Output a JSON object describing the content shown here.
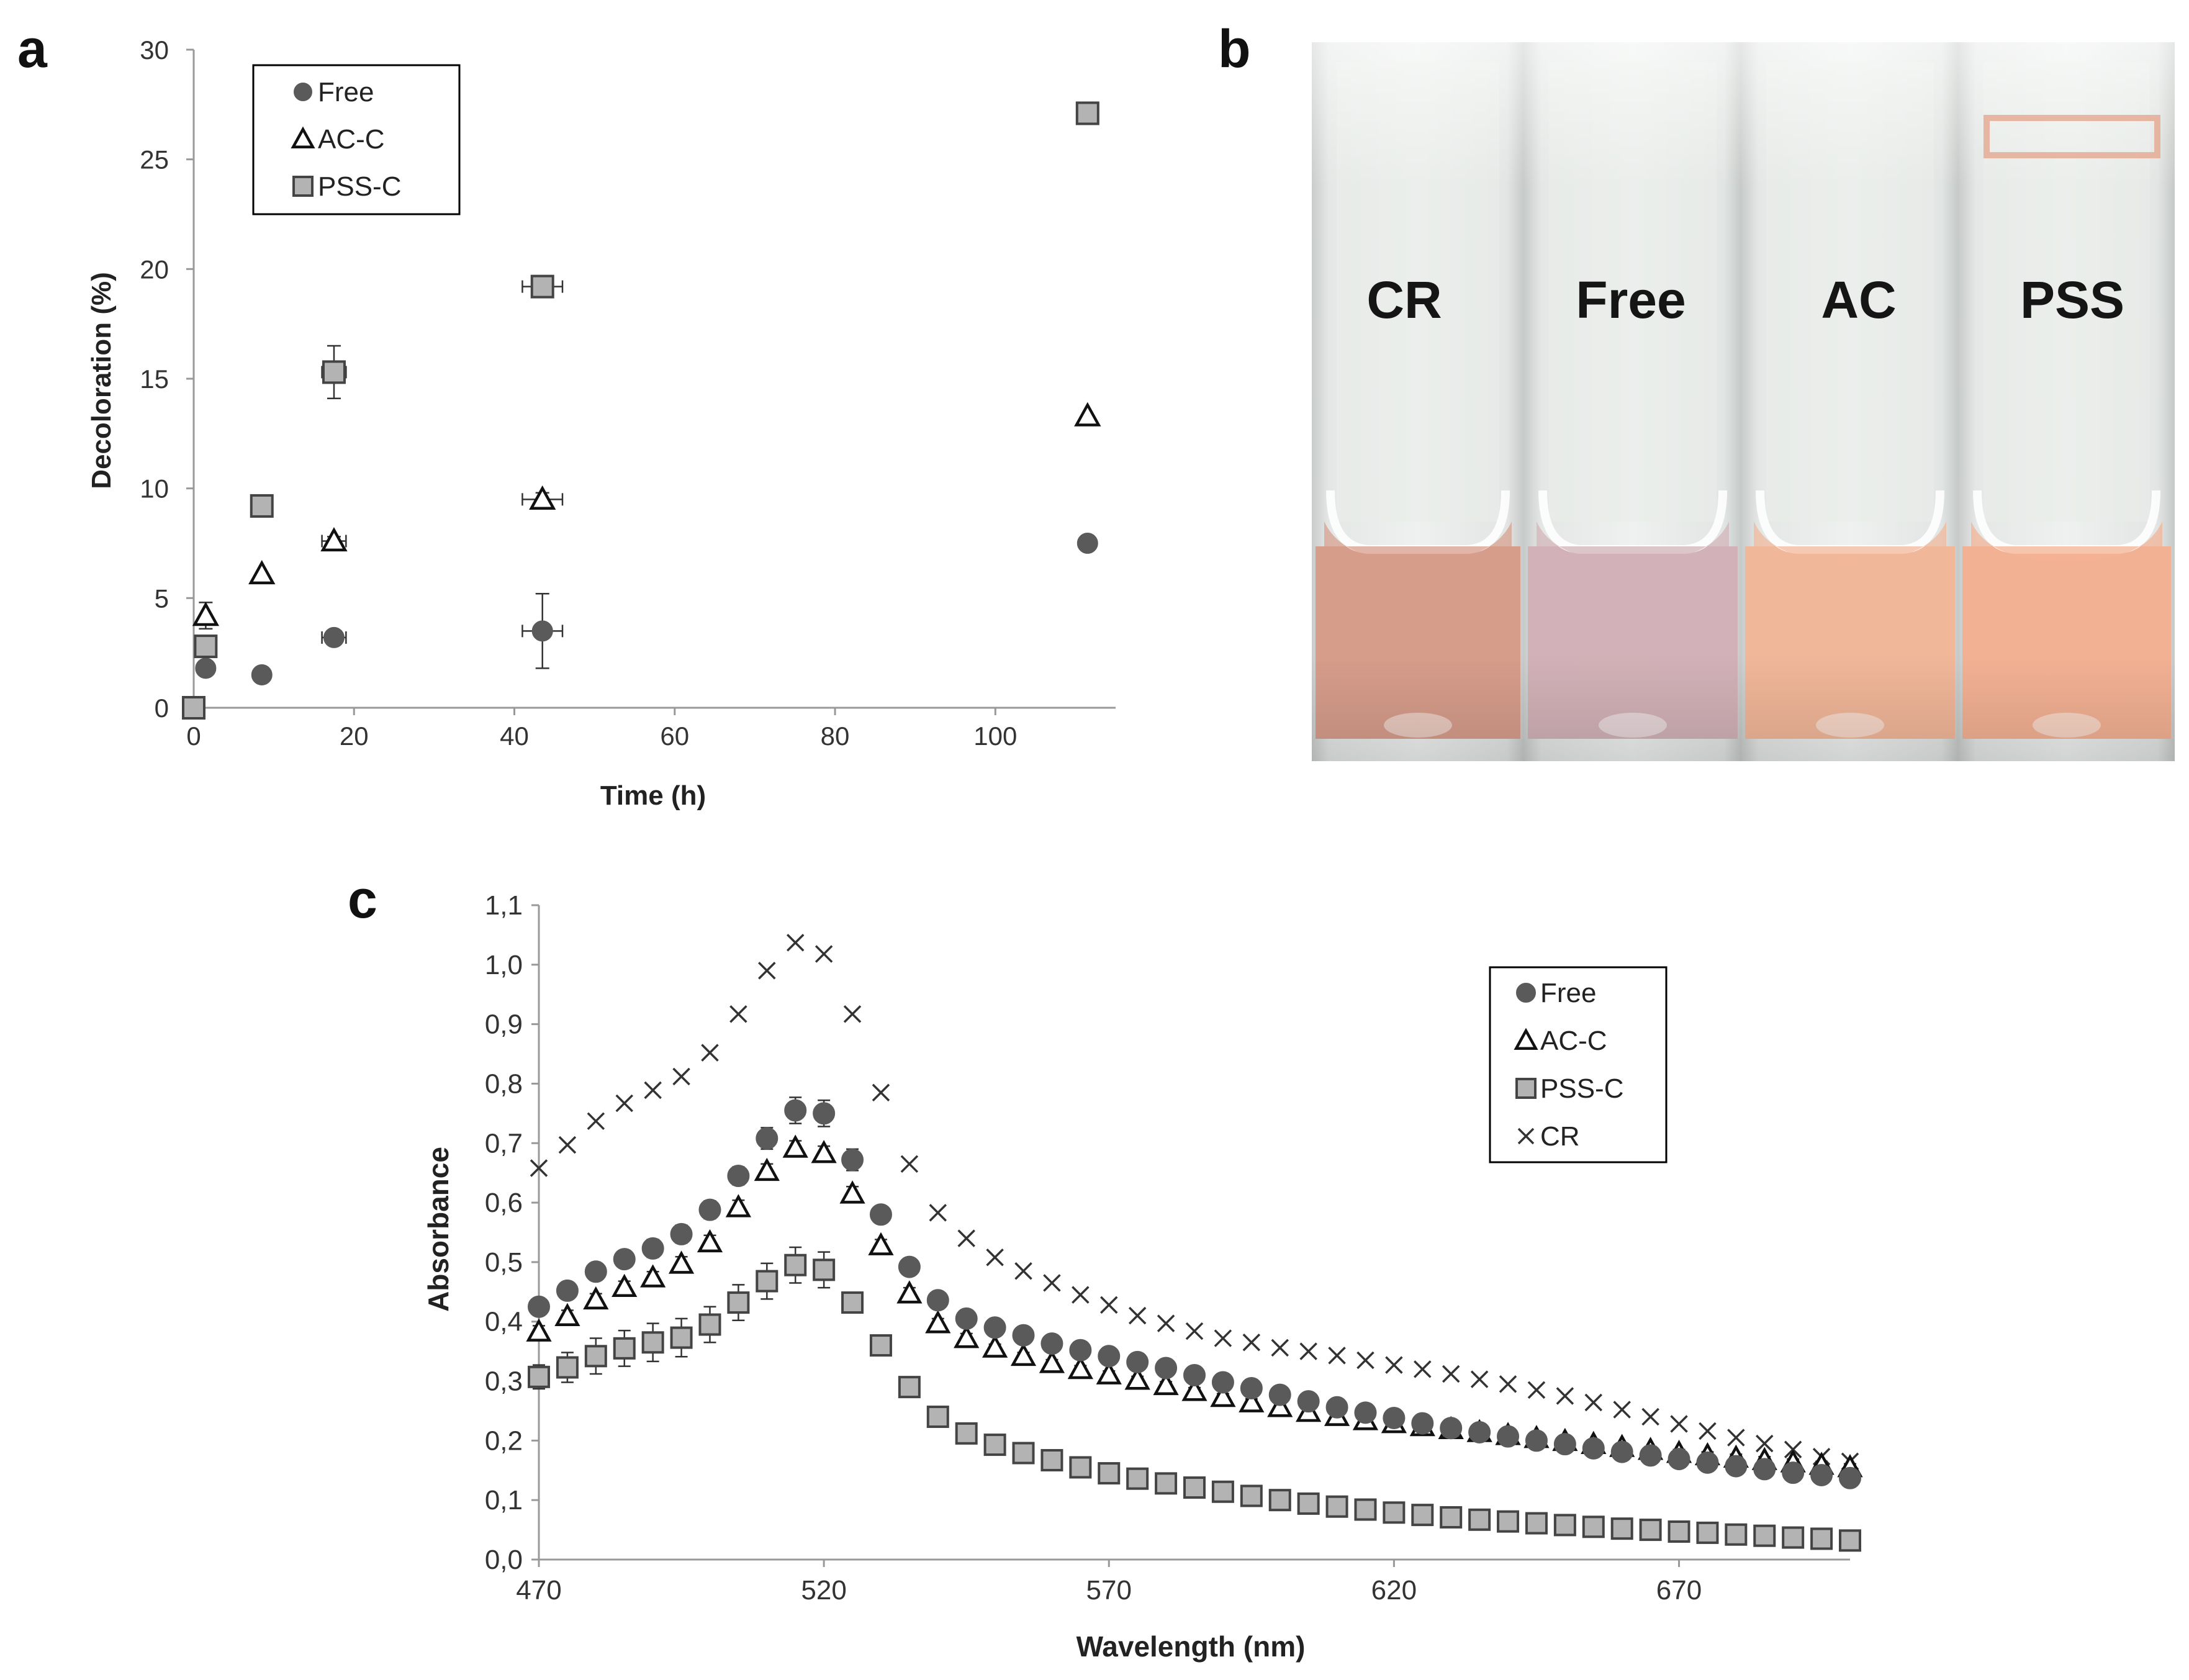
{
  "panels": {
    "a": "a",
    "b": "b",
    "c": "c"
  },
  "colors": {
    "free": "#5a5a5a",
    "pss": "#b3b3b3",
    "axis": "#999999",
    "text": "#222222"
  },
  "photo": {
    "labels": [
      "CR",
      "Free",
      "AC",
      "PSS"
    ],
    "liquid_colors": [
      "#d79d8b",
      "#d2b2b8",
      "#f1b799",
      "#f3b193"
    ]
  },
  "chart_data": [
    {
      "type": "scatter",
      "panel": "a",
      "title": "",
      "xlabel": "Time (h)",
      "ylabel": "Decoloration (%)",
      "xlim": [
        0,
        115
      ],
      "ylim": [
        0,
        30
      ],
      "xticks": [
        0,
        20,
        40,
        60,
        80,
        100
      ],
      "yticks": [
        0,
        5,
        10,
        15,
        20,
        25,
        30
      ],
      "legend": "top-left",
      "series": [
        {
          "name": "Free",
          "marker": "circle",
          "x": [
            1.5,
            8.5,
            17.5,
            43.5,
            111.5
          ],
          "y": [
            1.8,
            1.5,
            3.2,
            3.5,
            7.5
          ],
          "yerr": [
            0.3,
            0,
            0,
            1.7,
            0
          ],
          "xerr": [
            0,
            0,
            1.5,
            2.5,
            0
          ]
        },
        {
          "name": "AC-C",
          "marker": "triangle",
          "x": [
            1.5,
            8.5,
            17.5,
            43.5,
            111.5
          ],
          "y": [
            4.2,
            6.1,
            7.6,
            9.5,
            13.3
          ],
          "yerr": [
            0.6,
            0,
            0.2,
            0.3,
            0
          ],
          "xerr": [
            0,
            0,
            1.5,
            2.5,
            0
          ]
        },
        {
          "name": "PSS-C",
          "marker": "square",
          "x": [
            0,
            1.5,
            8.5,
            17.5,
            43.5,
            111.5
          ],
          "y": [
            0,
            2.8,
            9.2,
            15.3,
            19.2,
            27.1
          ],
          "yerr": [
            0,
            0.4,
            0,
            1.2,
            0,
            0
          ],
          "xerr": [
            0,
            0,
            0,
            1.5,
            2.5,
            0
          ]
        }
      ]
    },
    {
      "type": "scatter",
      "panel": "c",
      "title": "",
      "xlabel": "Wavelength (nm)",
      "ylabel": "Absorbance",
      "xlim": [
        470,
        700
      ],
      "ylim": [
        0,
        1.1
      ],
      "xticks": [
        470,
        520,
        570,
        620,
        670
      ],
      "xtick_labels": [
        "470",
        "520",
        "570",
        "620",
        "670"
      ],
      "yticks": [
        0,
        0.1,
        0.2,
        0.3,
        0.4,
        0.5,
        0.6,
        0.7,
        0.8,
        0.9,
        1.0,
        1.1
      ],
      "ytick_labels": [
        "0,0",
        "0,1",
        "0,2",
        "0,3",
        "0,4",
        "0,5",
        "0,6",
        "0,7",
        "0,8",
        "0,9",
        "1,0",
        "1,1"
      ],
      "legend": "top-right",
      "x": [
        470,
        475,
        480,
        485,
        490,
        495,
        500,
        505,
        510,
        515,
        520,
        525,
        530,
        535,
        540,
        545,
        550,
        555,
        560,
        565,
        570,
        575,
        580,
        585,
        590,
        595,
        600,
        605,
        610,
        615,
        620,
        625,
        630,
        635,
        640,
        645,
        650,
        655,
        660,
        665,
        670,
        675,
        680,
        685,
        690,
        695,
        700
      ],
      "series": [
        {
          "name": "Free",
          "marker": "circle",
          "values": [
            0.425,
            0.452,
            0.484,
            0.505,
            0.523,
            0.547,
            0.588,
            0.645,
            0.708,
            0.755,
            0.75,
            0.672,
            0.58,
            0.492,
            0.436,
            0.405,
            0.39,
            0.377,
            0.363,
            0.352,
            0.342,
            0.332,
            0.322,
            0.31,
            0.298,
            0.288,
            0.277,
            0.266,
            0.256,
            0.247,
            0.238,
            0.229,
            0.221,
            0.214,
            0.207,
            0.2,
            0.194,
            0.187,
            0.181,
            0.175,
            0.169,
            0.163,
            0.157,
            0.152,
            0.146,
            0.142,
            0.137
          ],
          "yerr": [
            0.005,
            0.012,
            0.012,
            0.012,
            0.015,
            0.015,
            0.015,
            0.015,
            0.018,
            0.022,
            0.022,
            0.018,
            0.012,
            0.012,
            0.008,
            0.008,
            0.005,
            0.005,
            0.005,
            0.005,
            0.005,
            0.005,
            0.005,
            0.005,
            0.005,
            0.005,
            0.005,
            0.005,
            0.005,
            0.005,
            0.005,
            0.005,
            0.005,
            0.005,
            0.005,
            0.005,
            0.005,
            0.005,
            0.005,
            0.005,
            0.005,
            0.005,
            0.005,
            0.005,
            0.005,
            0.005,
            0.005
          ]
        },
        {
          "name": "AC-C",
          "marker": "triangle",
          "values": [
            0.383,
            0.409,
            0.437,
            0.458,
            0.474,
            0.497,
            0.533,
            0.592,
            0.653,
            0.692,
            0.683,
            0.615,
            0.528,
            0.447,
            0.397,
            0.372,
            0.356,
            0.342,
            0.33,
            0.32,
            0.311,
            0.302,
            0.293,
            0.283,
            0.273,
            0.264,
            0.256,
            0.248,
            0.241,
            0.234,
            0.229,
            0.224,
            0.219,
            0.214,
            0.209,
            0.204,
            0.199,
            0.194,
            0.189,
            0.184,
            0.179,
            0.175,
            0.171,
            0.167,
            0.163,
            0.159,
            0.155
          ],
          "yerr": [
            0.01,
            0.01,
            0.01,
            0.01,
            0.01,
            0.012,
            0.012,
            0.012,
            0.012,
            0.012,
            0.012,
            0.012,
            0.01,
            0.01,
            0.008,
            0.008,
            0.006,
            0.006,
            0.006,
            0.006,
            0.006,
            0.006,
            0.006,
            0.006,
            0.006,
            0.006,
            0.006,
            0.006,
            0.006,
            0.006,
            0.006,
            0.006,
            0.006,
            0.006,
            0.006,
            0.006,
            0.006,
            0.006,
            0.006,
            0.006,
            0.006,
            0.006,
            0.006,
            0.006,
            0.006,
            0.006,
            0.006
          ]
        },
        {
          "name": "PSS-C",
          "marker": "square",
          "values": [
            0.307,
            0.323,
            0.342,
            0.355,
            0.365,
            0.373,
            0.395,
            0.432,
            0.468,
            0.495,
            0.487,
            0.432,
            0.36,
            0.29,
            0.24,
            0.212,
            0.193,
            0.179,
            0.167,
            0.155,
            0.145,
            0.136,
            0.128,
            0.121,
            0.114,
            0.107,
            0.1,
            0.094,
            0.089,
            0.084,
            0.079,
            0.075,
            0.071,
            0.067,
            0.064,
            0.061,
            0.058,
            0.055,
            0.052,
            0.05,
            0.047,
            0.045,
            0.042,
            0.04,
            0.037,
            0.035,
            0.032
          ],
          "yerr": [
            0.02,
            0.025,
            0.03,
            0.03,
            0.032,
            0.032,
            0.03,
            0.03,
            0.03,
            0.03,
            0.03,
            0.012,
            0.008,
            0.008,
            0.006,
            0.006,
            0.005,
            0.005,
            0.005,
            0.005,
            0.005,
            0.005,
            0.005,
            0.005,
            0.005,
            0.005,
            0.005,
            0.005,
            0.005,
            0.005,
            0.005,
            0.005,
            0.005,
            0.005,
            0.005,
            0.005,
            0.005,
            0.005,
            0.005,
            0.005,
            0.005,
            0.005,
            0.005,
            0.005,
            0.005,
            0.005,
            0.005
          ]
        },
        {
          "name": "CR",
          "marker": "cross",
          "values": [
            0.658,
            0.697,
            0.737,
            0.767,
            0.789,
            0.812,
            0.852,
            0.917,
            0.99,
            1.037,
            1.018,
            0.917,
            0.785,
            0.665,
            0.583,
            0.54,
            0.508,
            0.485,
            0.465,
            0.445,
            0.428,
            0.41,
            0.397,
            0.384,
            0.372,
            0.365,
            0.356,
            0.35,
            0.343,
            0.335,
            0.327,
            0.32,
            0.312,
            0.303,
            0.295,
            0.285,
            0.275,
            0.264,
            0.252,
            0.24,
            0.228,
            0.216,
            0.205,
            0.195,
            0.185,
            0.173,
            0.165
          ]
        }
      ]
    }
  ]
}
